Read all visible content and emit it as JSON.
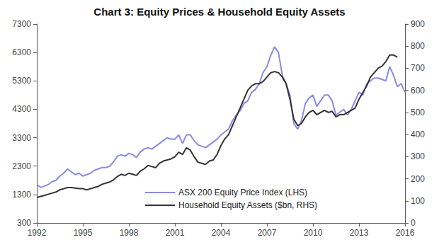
{
  "chart_data": {
    "type": "line",
    "title": "Chart 3: Equity Prices & Household Equity Assets",
    "x": [
      1992,
      1992.25,
      1992.5,
      1992.75,
      1993,
      1993.25,
      1993.5,
      1993.75,
      1994,
      1994.25,
      1994.5,
      1994.75,
      1995,
      1995.25,
      1995.5,
      1995.75,
      1996,
      1996.25,
      1996.5,
      1996.75,
      1997,
      1997.25,
      1997.5,
      1997.75,
      1998,
      1998.25,
      1998.5,
      1998.75,
      1999,
      1999.25,
      1999.5,
      1999.75,
      2000,
      2000.25,
      2000.5,
      2000.75,
      2001,
      2001.25,
      2001.5,
      2001.75,
      2002,
      2002.25,
      2002.5,
      2002.75,
      2003,
      2003.25,
      2003.5,
      2003.75,
      2004,
      2004.25,
      2004.5,
      2004.75,
      2005,
      2005.25,
      2005.5,
      2005.75,
      2006,
      2006.25,
      2006.5,
      2006.75,
      2007,
      2007.25,
      2007.5,
      2007.75,
      2008,
      2008.25,
      2008.5,
      2008.75,
      2009,
      2009.25,
      2009.5,
      2009.75,
      2010,
      2010.25,
      2010.5,
      2010.75,
      2011,
      2011.25,
      2011.5,
      2011.75,
      2012,
      2012.25,
      2012.5,
      2012.75,
      2013,
      2013.25,
      2013.5,
      2013.75,
      2014,
      2014.25,
      2014.5,
      2014.75,
      2015,
      2015.25,
      2015.5,
      2015.75,
      2016
    ],
    "series": [
      {
        "name": "ASX 200 Equity Price Index (LHS)",
        "color": "#8a8ae6",
        "line_style": "solid",
        "values": [
          1650,
          1550,
          1600,
          1650,
          1750,
          1800,
          1950,
          2050,
          2200,
          2100,
          2000,
          2050,
          1950,
          2000,
          2050,
          2150,
          2200,
          2250,
          2250,
          2300,
          2450,
          2650,
          2700,
          2650,
          2750,
          2700,
          2600,
          2800,
          2900,
          2950,
          2900,
          3000,
          3100,
          3200,
          3300,
          3250,
          3250,
          3400,
          3100,
          3400,
          3400,
          3200,
          3050,
          3000,
          2950,
          3050,
          3150,
          3250,
          3400,
          3500,
          3600,
          3900,
          4100,
          4250,
          4500,
          4600,
          4900,
          5000,
          5200,
          5600,
          5800,
          6200,
          6500,
          6300,
          5500,
          5200,
          4800,
          3800,
          3600,
          3900,
          4500,
          4700,
          4800,
          4400,
          4600,
          4800,
          4800,
          4600,
          4100,
          4200,
          4300,
          4100,
          4300,
          4600,
          4900,
          4800,
          5200,
          5300,
          5400,
          5400,
          5350,
          5300,
          5800,
          5500,
          5100,
          5200,
          4900
        ]
      },
      {
        "name": "Household Equity Assets ($bn, RHS)",
        "color": "#333333",
        "line_style": "solid",
        "axis": "y2",
        "values": [
          115,
          120,
          125,
          130,
          135,
          140,
          150,
          155,
          160,
          160,
          158,
          155,
          155,
          150,
          155,
          160,
          165,
          175,
          180,
          185,
          195,
          210,
          220,
          215,
          225,
          220,
          215,
          235,
          245,
          260,
          255,
          250,
          270,
          280,
          285,
          290,
          300,
          320,
          310,
          340,
          330,
          300,
          275,
          270,
          265,
          280,
          285,
          310,
          350,
          380,
          400,
          440,
          480,
          520,
          560,
          600,
          620,
          630,
          630,
          640,
          660,
          680,
          685,
          680,
          660,
          630,
          560,
          470,
          440,
          450,
          480,
          500,
          510,
          490,
          500,
          510,
          500,
          505,
          480,
          490,
          490,
          500,
          510,
          520,
          560,
          590,
          620,
          660,
          680,
          700,
          710,
          730,
          760,
          760,
          750,
          null,
          null
        ]
      }
    ],
    "xlim": [
      1992,
      2016
    ],
    "xticks": [
      1992,
      1995,
      1998,
      2001,
      2004,
      2007,
      2010,
      2013,
      2016
    ],
    "ylim": [
      300,
      7300
    ],
    "yticks": [
      300,
      1300,
      2300,
      3300,
      4300,
      5300,
      6300,
      7300
    ],
    "y2lim": [
      0,
      900
    ],
    "y2ticks": [
      0,
      100,
      200,
      300,
      400,
      500,
      600,
      700,
      800,
      900
    ],
    "grid": false,
    "legend": "lower center"
  }
}
